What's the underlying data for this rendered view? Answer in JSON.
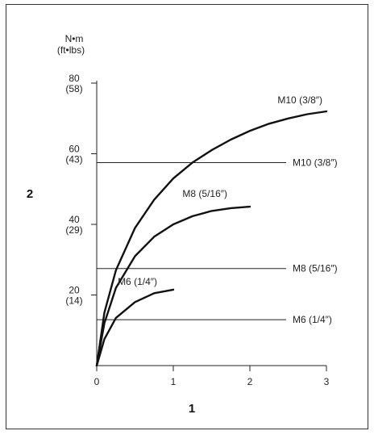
{
  "chart_data": {
    "type": "line",
    "ylabel_line1": "N•m",
    "ylabel_line2": "(ft•lbs)",
    "xlabel": "1",
    "ylabel": "2",
    "xlim": [
      0,
      3
    ],
    "ylim": [
      0,
      80
    ],
    "x_ticks": [
      {
        "value": 0,
        "label": "0"
      },
      {
        "value": 1,
        "label": "1"
      },
      {
        "value": 2,
        "label": "2"
      },
      {
        "value": 3,
        "label": "3"
      }
    ],
    "y_ticks": [
      {
        "value": 20,
        "label": "20",
        "sub": "(14)"
      },
      {
        "value": 40,
        "label": "40",
        "sub": "(29)"
      },
      {
        "value": 60,
        "label": "60",
        "sub": "(43)"
      },
      {
        "value": 80,
        "label": "80",
        "sub": "(58)"
      }
    ],
    "curves": [
      {
        "name": "M10 (3/8″)",
        "x": [
          0,
          0.1,
          0.25,
          0.5,
          0.75,
          1,
          1.25,
          1.5,
          1.75,
          2,
          2.25,
          2.5,
          2.75,
          3
        ],
        "y": [
          0,
          15,
          27,
          39,
          47,
          53,
          57.5,
          61,
          64,
          66.5,
          68.5,
          70,
          71.2,
          72
        ]
      },
      {
        "name": "M8 (5/16″)",
        "x": [
          0,
          0.1,
          0.25,
          0.5,
          0.75,
          1,
          1.25,
          1.5,
          1.75,
          2
        ],
        "y": [
          0,
          12,
          22,
          31,
          36.5,
          40,
          42.3,
          43.8,
          44.6,
          45
        ]
      },
      {
        "name": "M6 (1/4″)",
        "x": [
          0,
          0.1,
          0.25,
          0.5,
          0.75,
          1
        ],
        "y": [
          0,
          7.5,
          13.5,
          18,
          20.5,
          21.5
        ]
      }
    ],
    "reference_lines": [
      {
        "name": "M10 (3/8″)",
        "y": 57.5
      },
      {
        "name": "M8 (5/16″)",
        "y": 27.5
      },
      {
        "name": "M6 (1/4″)",
        "y": 13
      }
    ],
    "grid": false
  }
}
